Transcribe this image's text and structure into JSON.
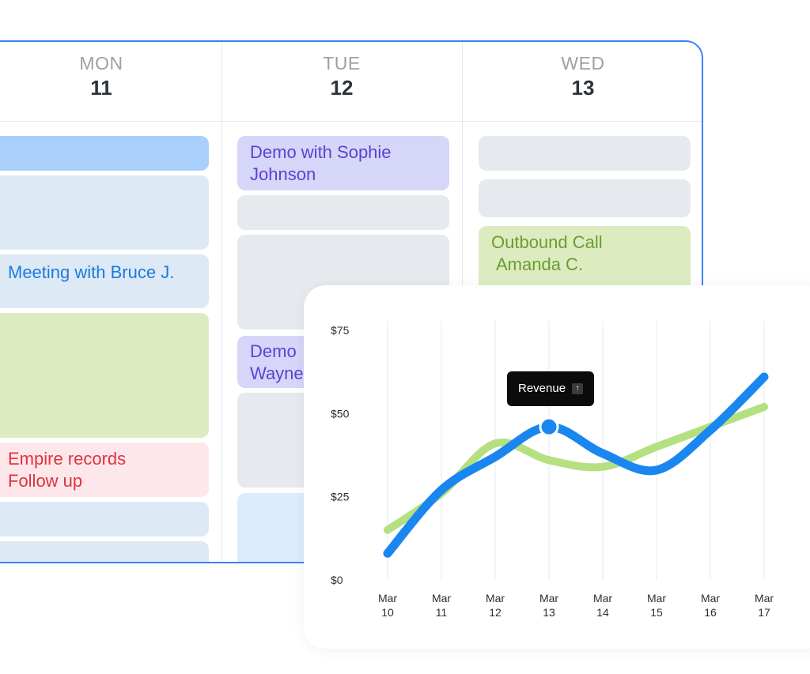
{
  "calendar": {
    "days": [
      {
        "name": "MON",
        "num": "11"
      },
      {
        "name": "TUE",
        "num": "12"
      },
      {
        "name": "WED",
        "num": "13"
      }
    ],
    "events": {
      "mon_meeting": "Meeting with Bruce J.",
      "mon_empire_1": "Empire records",
      "mon_empire_2": "Follow up",
      "tue_demo_sophie_1": "Demo with Sophie",
      "tue_demo_sophie_2": "Johnson",
      "tue_demo_wayne_1": "Demo",
      "tue_demo_wayne_2": "Wayne",
      "wed_outbound_1": "Outbound Call",
      "wed_outbound_2": "Amanda C."
    },
    "colors": {
      "border": "#3b82f6",
      "blue_text": "#1a7bdc",
      "green_text": "#6c9b2f",
      "red_text": "#e0323e",
      "purple_text": "#5f3fd3"
    }
  },
  "tooltip": {
    "label": "Revenue",
    "icon": "arrow-up-icon"
  },
  "chart_data": {
    "type": "line",
    "categories": [
      "Mar 10",
      "Mar 11",
      "Mar 12",
      "Mar 13",
      "Mar 14",
      "Mar 15",
      "Mar 16",
      "Mar 17"
    ],
    "x_labels": [
      [
        "Mar",
        "10"
      ],
      [
        "Mar",
        "11"
      ],
      [
        "Mar",
        "12"
      ],
      [
        "Mar",
        "13"
      ],
      [
        "Mar",
        "14"
      ],
      [
        "Mar",
        "15"
      ],
      [
        "Mar",
        "16"
      ],
      [
        "Mar",
        "17"
      ]
    ],
    "y_ticks": [
      "$75",
      "$50",
      "$25",
      "$0"
    ],
    "ylim": [
      0,
      75
    ],
    "series": [
      {
        "color": "#1a86f0",
        "values": [
          8,
          27,
          37,
          46,
          38,
          33,
          45,
          61
        ],
        "highlight_index": 3
      },
      {
        "color": "#b5e07f",
        "values": [
          15,
          26,
          41,
          36,
          34,
          40,
          46,
          52
        ]
      }
    ],
    "grid": true
  }
}
